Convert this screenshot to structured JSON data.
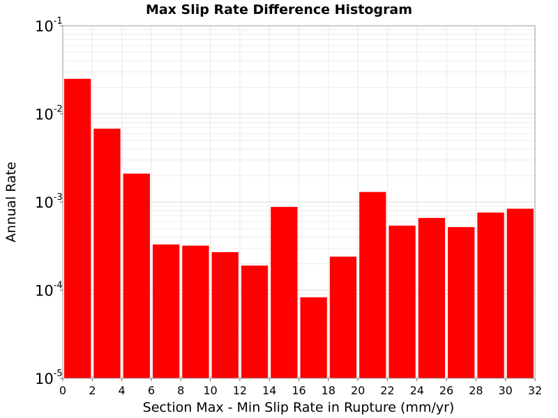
{
  "chart_data": {
    "type": "bar",
    "title": "Max Slip Rate Difference Histogram",
    "xlabel": "Section Max - Min Slip Rate in Rupture (mm/yr)",
    "ylabel": "Annual Rate",
    "xlim": [
      0,
      32
    ],
    "ylim": [
      1e-05,
      0.1
    ],
    "yscale": "log",
    "grid": true,
    "color": "#ff0000",
    "bin_width": 2,
    "x_ticks": [
      "0",
      "2",
      "4",
      "6",
      "8",
      "10",
      "12",
      "14",
      "16",
      "18",
      "20",
      "22",
      "24",
      "26",
      "28",
      "30",
      "32"
    ],
    "y_ticks": [
      {
        "base": "10",
        "exp": "-5",
        "value": 1e-05
      },
      {
        "base": "10",
        "exp": "-4",
        "value": 0.0001
      },
      {
        "base": "10",
        "exp": "-3",
        "value": 0.001
      },
      {
        "base": "10",
        "exp": "-2",
        "value": 0.01
      },
      {
        "base": "10",
        "exp": "-1",
        "value": 0.1
      }
    ],
    "bins": [
      {
        "x0": 0,
        "x1": 2,
        "value": 0.025
      },
      {
        "x0": 2,
        "x1": 4,
        "value": 0.0068
      },
      {
        "x0": 4,
        "x1": 6,
        "value": 0.0021
      },
      {
        "x0": 6,
        "x1": 8,
        "value": 0.00033
      },
      {
        "x0": 8,
        "x1": 10,
        "value": 0.00032
      },
      {
        "x0": 10,
        "x1": 12,
        "value": 0.00027
      },
      {
        "x0": 12,
        "x1": 14,
        "value": 0.00019
      },
      {
        "x0": 14,
        "x1": 16,
        "value": 0.00088
      },
      {
        "x0": 16,
        "x1": 18,
        "value": 8.3e-05
      },
      {
        "x0": 18,
        "x1": 20,
        "value": 0.00024
      },
      {
        "x0": 20,
        "x1": 22,
        "value": 0.0013
      },
      {
        "x0": 22,
        "x1": 24,
        "value": 0.00054
      },
      {
        "x0": 24,
        "x1": 26,
        "value": 0.00066
      },
      {
        "x0": 26,
        "x1": 28,
        "value": 0.00052
      },
      {
        "x0": 28,
        "x1": 30,
        "value": 0.00076
      },
      {
        "x0": 30,
        "x1": 32,
        "value": 0.00084
      }
    ]
  }
}
